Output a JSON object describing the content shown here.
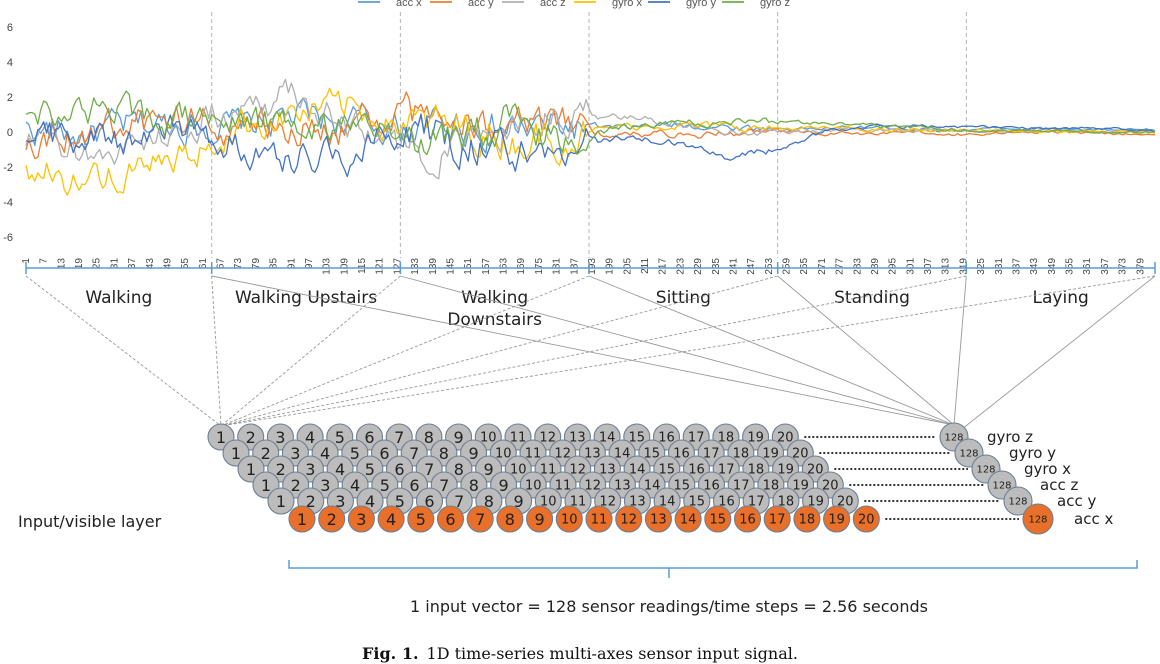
{
  "chart_data": {
    "type": "line",
    "series": [
      {
        "name": "acc x",
        "color": "#5b9bd5",
        "base": [
          0.2,
          -0.2,
          0.3,
          0.5,
          0.3,
          0.9,
          0.6,
          0.2,
          0.5,
          0.1,
          0.3,
          0.2,
          0.4,
          0.3,
          0.2,
          0.2,
          0.3,
          0.1,
          0.2,
          0.2,
          0.1,
          0.1
        ]
      },
      {
        "name": "acc y",
        "color": "#ed7d31",
        "base": [
          -0.3,
          0.1,
          0.3,
          0.8,
          0.3,
          0.3,
          0.2,
          1.0,
          0.7,
          0.2,
          0.0,
          -0.1,
          -0.1,
          -0.1,
          0.0,
          -0.1,
          -0.1,
          -0.1,
          -0.1,
          0.0,
          -0.1,
          -0.1
        ]
      },
      {
        "name": "acc z",
        "color": "#b0b0b0",
        "base": [
          -0.6,
          -1.2,
          -0.8,
          0.4,
          1.2,
          2.4,
          0.4,
          -0.6,
          -1.2,
          0.5,
          1.0,
          0.8,
          0.6,
          0.1,
          0.0,
          0.1,
          0.1,
          0.1,
          0.0,
          0.1,
          0.0,
          0.0
        ]
      },
      {
        "name": "gyro x",
        "color": "#ffc000",
        "base": [
          -2.2,
          -2.6,
          -2.5,
          -1.5,
          0.5,
          1.0,
          1.4,
          0.6,
          0.2,
          -0.4,
          -0.2,
          0.3,
          0.4,
          0.3,
          0.2,
          0.2,
          0.1,
          0.1,
          0.1,
          0.0,
          0.0,
          0.0
        ]
      },
      {
        "name": "gyro y",
        "color": "#4472c4",
        "base": [
          0.3,
          -0.6,
          -0.3,
          0.2,
          -0.8,
          -1.4,
          -1.2,
          0.4,
          -0.6,
          -1.0,
          -1.4,
          -0.3,
          -0.6,
          -1.4,
          -1.0,
          0.2,
          0.3,
          0.3,
          0.3,
          0.2,
          0.2,
          0.1
        ]
      },
      {
        "name": "gyro z",
        "color": "#70ad47",
        "base": [
          1.3,
          1.2,
          1.0,
          0.8,
          0.7,
          0.4,
          0.2,
          -0.4,
          -0.5,
          0.6,
          -0.6,
          0.3,
          0.5,
          0.6,
          0.6,
          0.5,
          0.3,
          0.2,
          0.1,
          0.1,
          0.0,
          0.0
        ]
      }
    ],
    "y_ticks": [
      "6",
      "4",
      "2",
      "0",
      "-2",
      "-4",
      "-6"
    ],
    "ylim": [
      -6,
      6
    ],
    "x_ticks": [
      "1",
      "7",
      "13",
      "19",
      "25",
      "31",
      "37",
      "43",
      "49",
      "55",
      "61",
      "67",
      "73",
      "79",
      "85",
      "91",
      "97",
      "103",
      "109",
      "115",
      "121",
      "127",
      "133",
      "139",
      "145",
      "151",
      "157",
      "163",
      "169",
      "175",
      "181",
      "187",
      "193",
      "199",
      "205",
      "211",
      "217",
      "223",
      "229",
      "235",
      "241",
      "247",
      "253",
      "259",
      "265",
      "271",
      "277",
      "283",
      "289",
      "295",
      "301",
      "307",
      "313",
      "319",
      "325",
      "331",
      "337",
      "343",
      "349",
      "355",
      "361",
      "367",
      "373",
      "379"
    ],
    "xlim": [
      1,
      384
    ],
    "grid": false,
    "legend": "top",
    "activities": [
      "Walking",
      "Walking Upstairs",
      "Walking\nDownstairs",
      "Sitting",
      "Standing",
      "Laying"
    ],
    "activity_bounds": [
      1,
      64,
      128,
      192,
      256,
      320,
      384
    ]
  },
  "network": {
    "input_label": "Input/visible layer",
    "rows": [
      {
        "label": "gyro z",
        "color": "#bcbcbc"
      },
      {
        "label": "gyro y",
        "color": "#bcbcbc"
      },
      {
        "label": "gyro x",
        "color": "#bcbcbc"
      },
      {
        "label": "acc z",
        "color": "#bcbcbc"
      },
      {
        "label": "acc y",
        "color": "#bcbcbc"
      },
      {
        "label": "acc x",
        "color": "#e8702a"
      }
    ],
    "node_labels": [
      "1",
      "2",
      "3",
      "4",
      "5",
      "6",
      "7",
      "8",
      "9",
      "10",
      "11",
      "12",
      "13",
      "14",
      "15",
      "16",
      "17",
      "18",
      "19",
      "20"
    ],
    "last_node_label": "128"
  },
  "summary": "1 input vector = 128 sensor readings/time steps = 2.56 seconds",
  "caption": {
    "label": "Fig. 1.",
    "text": "1D time-series multi-axes sensor input signal."
  }
}
